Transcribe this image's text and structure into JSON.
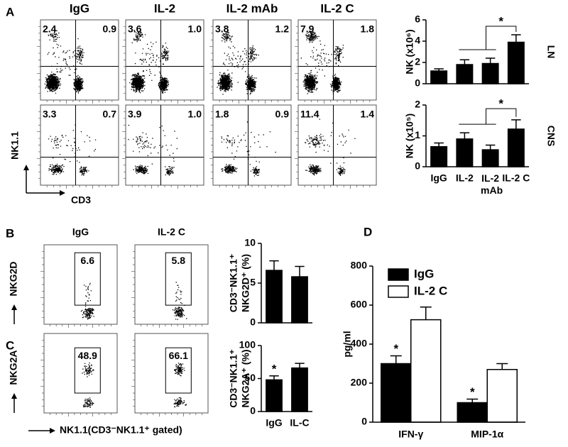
{
  "figure": {
    "panel_labels": [
      "A",
      "B",
      "C",
      "D"
    ],
    "flow_A": {
      "columns": [
        "IgG",
        "IL-2",
        "IL-2 mAb",
        "IL-2 C"
      ],
      "quadrants": [
        [
          [
            "2.4",
            "0.9"
          ],
          [
            "3.6",
            "1.0"
          ],
          [
            "3.8",
            "1.2"
          ],
          [
            "7.9",
            "1.8"
          ]
        ],
        [
          [
            "3.3",
            "0.7"
          ],
          [
            "3.9",
            "1.0"
          ],
          [
            "1.8",
            "0.9"
          ],
          [
            "11.4",
            "1.4"
          ]
        ]
      ],
      "y_axis": "NK1.1",
      "x_axis": "CD3"
    },
    "flow_BC": {
      "columns": [
        "IgG",
        "IL-2 C"
      ],
      "rows": [
        {
          "marker": "NKG2D",
          "gates": [
            "6.6",
            "5.8"
          ]
        },
        {
          "marker": "NKG2A",
          "gates": [
            "48.9",
            "66.1"
          ]
        }
      ],
      "x_axis": "NK1.1(CD3⁻NK1.1⁺ gated)"
    }
  },
  "chart_data": [
    {
      "type": "bar",
      "side_label": "LN",
      "ylabel": "NK (x10⁶)",
      "values": [
        1.2,
        1.8,
        1.9,
        3.9
      ],
      "errors": [
        0.2,
        0.45,
        0.5,
        0.7
      ],
      "color": "#000000",
      "ylim": [
        0,
        6
      ],
      "yticks": [
        0,
        2,
        4,
        6
      ],
      "annotations": [
        {
          "text": "*",
          "from": [
            1,
            2
          ],
          "to": 3
        }
      ]
    },
    {
      "type": "bar",
      "side_label": "CNS",
      "ylabel": "NK (x10⁵)",
      "categories": [
        "IgG",
        "IL-2",
        "IL-2 mAb",
        "IL-2 C"
      ],
      "values": [
        0.65,
        0.9,
        0.55,
        1.22
      ],
      "errors": [
        0.12,
        0.2,
        0.15,
        0.3
      ],
      "color": "#000000",
      "ylim": [
        0,
        2
      ],
      "yticks": [
        0,
        1,
        2
      ],
      "annotations": [
        {
          "text": "*",
          "from": [
            1,
            2
          ],
          "to": 3
        }
      ]
    },
    {
      "type": "bar",
      "ylabel": [
        "CD3⁻NK1.1⁺",
        "NKG2D⁺ (%)"
      ],
      "values": [
        6.6,
        5.8
      ],
      "errors": [
        1.2,
        1.3
      ],
      "color": "#000000",
      "ylim": [
        0,
        10
      ],
      "yticks": [
        0,
        5,
        10
      ]
    },
    {
      "type": "bar",
      "ylabel": [
        "CD3⁻NK1.1⁺",
        "NKG2A⁺ (%)"
      ],
      "categories": [
        "IgG",
        "IL-C"
      ],
      "values": [
        48,
        66
      ],
      "errors": [
        6,
        7
      ],
      "color": "#000000",
      "ylim": [
        0,
        100
      ],
      "yticks": [
        0,
        50,
        100
      ],
      "annotations": [
        {
          "text": "*",
          "bar": 0
        }
      ]
    },
    {
      "type": "grouped_bar",
      "ylabel": "pg/ml",
      "categories": [
        "IFN-γ",
        "MIP-1α"
      ],
      "series": [
        {
          "name": "IgG",
          "color": "#000000",
          "values": [
            300,
            100
          ],
          "errors": [
            40,
            18
          ]
        },
        {
          "name": "IL-2 C",
          "color": "#ffffff",
          "values": [
            525,
            270
          ],
          "errors": [
            65,
            30
          ]
        }
      ],
      "ylim": [
        0,
        800
      ],
      "yticks": [
        0,
        200,
        400,
        600,
        800
      ],
      "legend": "upper-left",
      "annotations": [
        {
          "text": "*",
          "series": 0,
          "bar": 0
        },
        {
          "text": "*",
          "series": 0,
          "bar": 1
        }
      ]
    }
  ]
}
